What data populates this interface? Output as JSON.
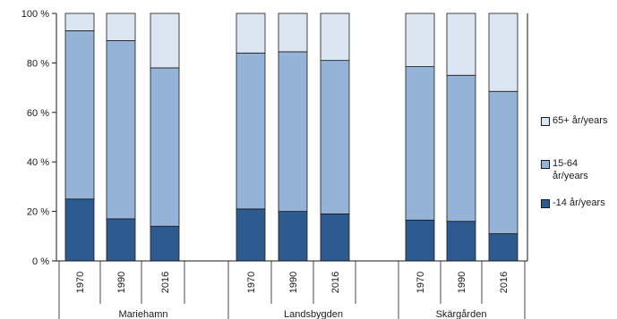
{
  "chart_data": {
    "type": "bar",
    "stacked": true,
    "percent_scale": true,
    "ylim": [
      0,
      100
    ],
    "yticks": [
      0,
      20,
      40,
      60,
      80,
      100
    ],
    "ytick_labels": [
      "0 %",
      "20 %",
      "40 %",
      "60 %",
      "80 %",
      "100 %"
    ],
    "grid": false,
    "legend_position": "right",
    "groups": [
      {
        "name": "Mariehamn",
        "categories": [
          "1970",
          "1990",
          "2016"
        ]
      },
      {
        "name": "Landsbygden",
        "categories": [
          "1970",
          "1990",
          "2016"
        ]
      },
      {
        "name": "Skärgården",
        "categories": [
          "1970",
          "1990",
          "2016"
        ]
      }
    ],
    "series": [
      {
        "name": "-14 år/years",
        "color": "#2e5b8f",
        "values": [
          25,
          17,
          14,
          21,
          20,
          19,
          16.5,
          16,
          11
        ]
      },
      {
        "name": "15-64 år/years",
        "color": "#95b3d7",
        "values": [
          68,
          72,
          64,
          63,
          64.5,
          62,
          62,
          59,
          57.5
        ]
      },
      {
        "name": "65+ år/years",
        "color": "#dce6f2",
        "values": [
          7,
          11,
          22,
          16,
          15.5,
          19,
          21.5,
          25,
          31.5
        ]
      }
    ],
    "legend_order": [
      "65+ år/years",
      "15-64 år/years",
      "-14 år/years"
    ]
  }
}
